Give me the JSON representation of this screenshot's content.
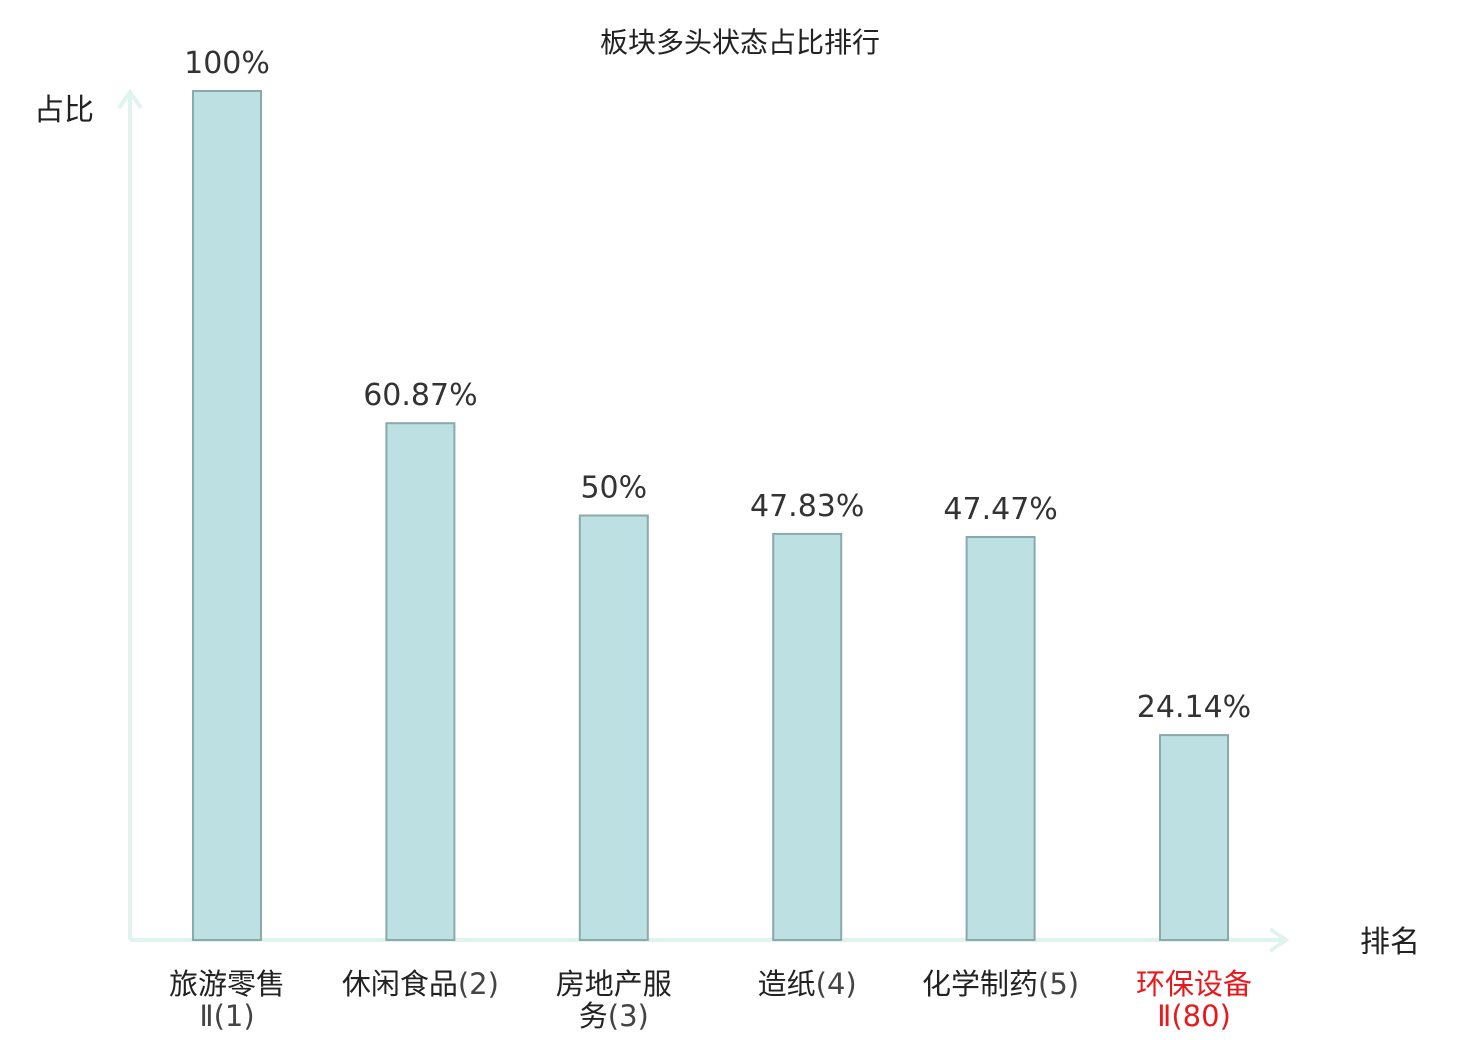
{
  "chart_data": {
    "type": "bar",
    "title": "板块多头状态占比排行",
    "ylabel": "占比",
    "xlabel": "排名",
    "ylim": [
      0,
      100
    ],
    "grid": false,
    "legend": "none",
    "bar_color": "#bde0e3",
    "bar_border_color": "#8aa9ab",
    "axis_color": "#dff3ef",
    "highlight_color": "#e8191c",
    "normal_label_color": "#222222",
    "rank_color": "#444444",
    "categories": [
      {
        "lines": [
          {
            "name": "旅游零售",
            "rank": ""
          },
          {
            "name": "",
            "rank": "Ⅱ(1)"
          }
        ],
        "highlight": false
      },
      {
        "lines": [
          {
            "name": "休闲食品",
            "rank": "(2)"
          }
        ],
        "highlight": false
      },
      {
        "lines": [
          {
            "name": "房地产服",
            "rank": ""
          },
          {
            "name": "务",
            "rank": "(3)"
          }
        ],
        "highlight": false
      },
      {
        "lines": [
          {
            "name": "造纸",
            "rank": "(4)"
          }
        ],
        "highlight": false
      },
      {
        "lines": [
          {
            "name": "化学制药",
            "rank": "(5)"
          }
        ],
        "highlight": false
      },
      {
        "lines": [
          {
            "name": "环保设备",
            "rank": ""
          },
          {
            "name": "",
            "rank": "Ⅱ(80)"
          }
        ],
        "highlight": true
      }
    ],
    "values": [
      100,
      60.87,
      50,
      47.83,
      47.47,
      24.14
    ],
    "value_labels": [
      "100%",
      "60.87%",
      "50%",
      "47.83%",
      "47.47%",
      "24.14%"
    ]
  }
}
